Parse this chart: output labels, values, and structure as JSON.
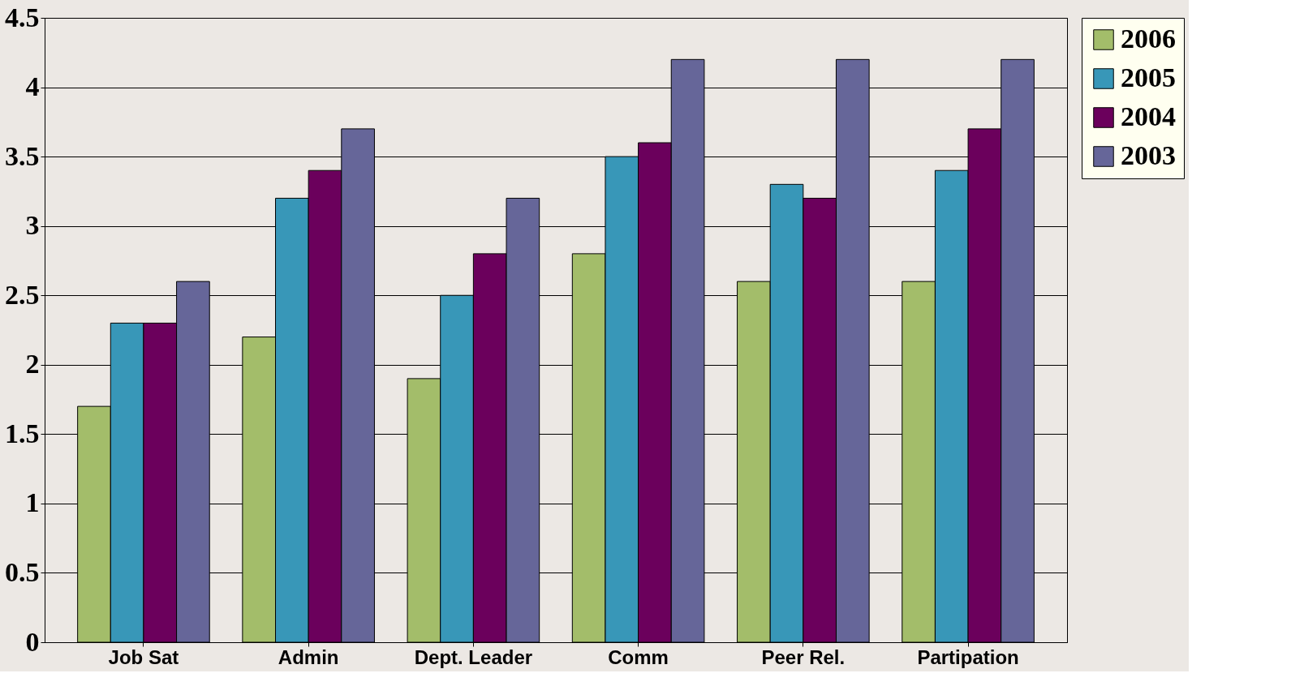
{
  "chart_data": {
    "type": "bar",
    "categories": [
      "Job Sat",
      "Admin",
      "Dept. Leader",
      "Comm",
      "Peer Rel.",
      "Partipation"
    ],
    "series": [
      {
        "name": "2006",
        "color": "#a3bd6a",
        "values": [
          1.7,
          2.2,
          1.9,
          2.8,
          2.6,
          2.6
        ]
      },
      {
        "name": "2005",
        "color": "#3897b8",
        "values": [
          2.3,
          3.2,
          2.5,
          3.5,
          3.3,
          3.4
        ]
      },
      {
        "name": "2004",
        "color": "#6b005c",
        "values": [
          2.3,
          3.4,
          2.8,
          3.6,
          3.2,
          3.7
        ]
      },
      {
        "name": "2003",
        "color": "#666699",
        "values": [
          2.6,
          3.7,
          3.2,
          4.2,
          4.2,
          4.2
        ]
      }
    ],
    "ylim": [
      0,
      4.5
    ],
    "yticks": [
      0,
      0.5,
      1,
      1.5,
      2,
      2.5,
      3,
      3.5,
      4,
      4.5
    ],
    "grid": "y",
    "legend": "right"
  }
}
